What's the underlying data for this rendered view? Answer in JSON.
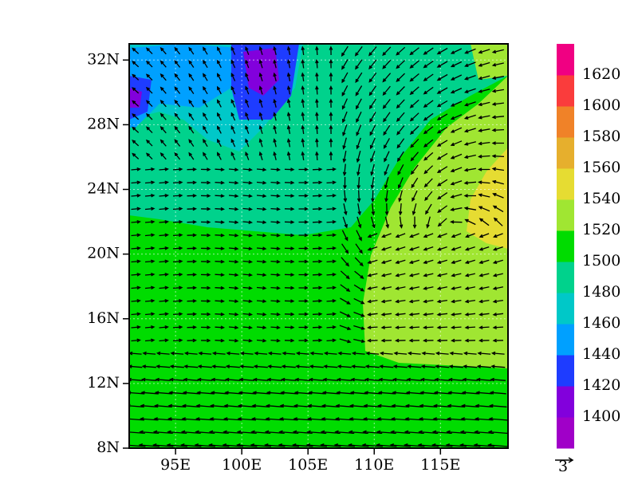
{
  "map": {
    "lat_ticks": [
      {
        "value": 32,
        "label": "32N"
      },
      {
        "value": 28,
        "label": "28N"
      },
      {
        "value": 24,
        "label": "24N"
      },
      {
        "value": 20,
        "label": "20N"
      },
      {
        "value": 16,
        "label": "16N"
      },
      {
        "value": 12,
        "label": "12N"
      },
      {
        "value": 8,
        "label": "8N"
      }
    ],
    "lon_ticks": [
      {
        "value": 95,
        "label": "95E"
      },
      {
        "value": 100,
        "label": "100E"
      },
      {
        "value": 105,
        "label": "105E"
      },
      {
        "value": 110,
        "label": "110E"
      },
      {
        "value": 115,
        "label": "115E"
      }
    ],
    "lat_range": [
      8,
      33
    ],
    "lon_range": [
      91.5,
      120.1
    ],
    "colorbar": {
      "levels": [
        1400,
        1420,
        1440,
        1460,
        1480,
        1500,
        1520,
        1540,
        1560,
        1580,
        1600,
        1620
      ],
      "colors": [
        "#a000c8",
        "#8200dc",
        "#1e3cff",
        "#00a0ff",
        "#00c8c8",
        "#00d28c",
        "#00dc00",
        "#a0e632",
        "#e6dc32",
        "#e6af2d",
        "#f08228",
        "#fa3c3c",
        "#f00082"
      ]
    },
    "reference_vector": "3"
  }
}
